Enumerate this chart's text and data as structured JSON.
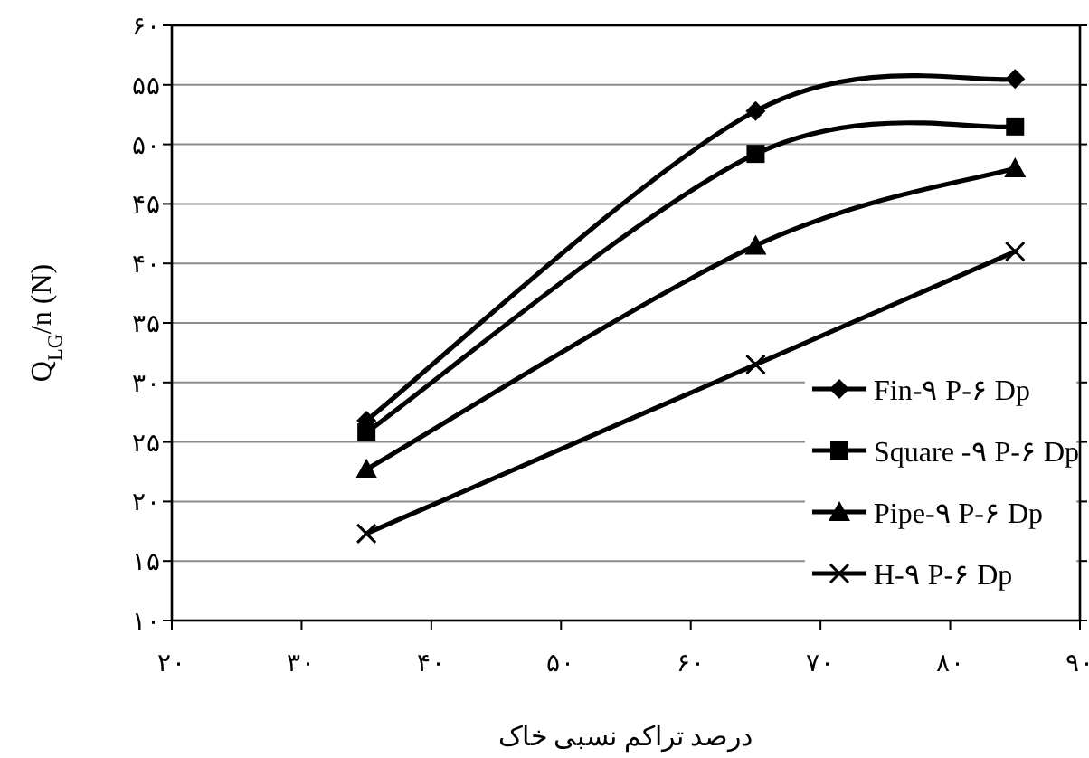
{
  "chart_data": {
    "type": "line",
    "xlabel": "درصد تراکم نسبی خاک",
    "ylabel": "Q$_{LG}$/n (N)",
    "x": [
      35,
      65,
      85
    ],
    "series": [
      {
        "name": "Fin-۹ P-۶ Dp",
        "color": "#000000",
        "marker": "diamond",
        "values": [
          26.8,
          52.8,
          55.5
        ]
      },
      {
        "name": "Square -۹ P-۶ Dp",
        "color": "#000000",
        "marker": "square",
        "values": [
          25.8,
          49.2,
          51.5
        ]
      },
      {
        "name": "Pipe-۹ P-۶ Dp",
        "color": "#000000",
        "marker": "triangle",
        "values": [
          22.7,
          41.5,
          48.0
        ]
      },
      {
        "name": "H-۹ P-۶ Dp",
        "color": "#000000",
        "marker": "cross",
        "values": [
          17.3,
          31.5,
          41.0
        ]
      }
    ],
    "xlim": [
      20,
      90
    ],
    "ylim": [
      10,
      60
    ],
    "xticks": [
      {
        "value": 20,
        "label": "۲۰"
      },
      {
        "value": 30,
        "label": "۳۰"
      },
      {
        "value": 40,
        "label": "۴۰"
      },
      {
        "value": 50,
        "label": "۵۰"
      },
      {
        "value": 60,
        "label": "۶۰"
      },
      {
        "value": 70,
        "label": "۷۰"
      },
      {
        "value": 80,
        "label": "۸۰"
      },
      {
        "value": 90,
        "label": "۹۰"
      }
    ],
    "yticks": [
      {
        "value": 10,
        "label": "۱۰"
      },
      {
        "value": 15,
        "label": "۱۵"
      },
      {
        "value": 20,
        "label": "۲۰"
      },
      {
        "value": 25,
        "label": "۲۵"
      },
      {
        "value": 30,
        "label": "۳۰"
      },
      {
        "value": 35,
        "label": "۳۵"
      },
      {
        "value": 40,
        "label": "۴۰"
      },
      {
        "value": 45,
        "label": "۴۵"
      },
      {
        "value": 50,
        "label": "۵۰"
      },
      {
        "value": 55,
        "label": "۵۵"
      },
      {
        "value": 60,
        "label": "۶۰"
      }
    ],
    "grid": "y",
    "legend": "bottom right",
    "line_style": "solid"
  }
}
